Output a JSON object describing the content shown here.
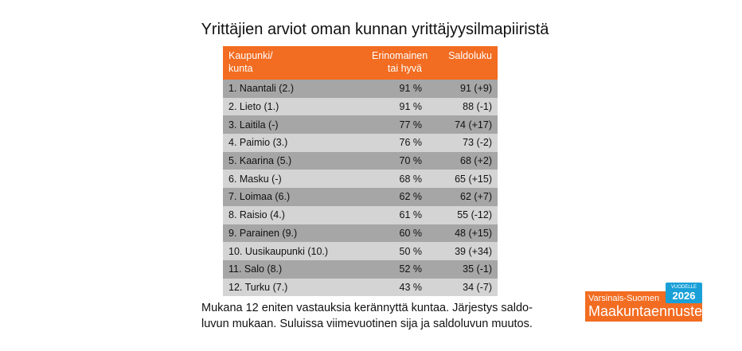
{
  "title": "Yrittäjien arviot oman kunnan yrittäjyysilmapiiristä",
  "table": {
    "headers": [
      "Kaupunki/\nkunta",
      "Erinomainen\ntai hyvä",
      "Saldoluku"
    ],
    "header_color": "#f26c21",
    "rows": [
      [
        "1. Naantali (2.)",
        "91 %",
        "91 (+9)"
      ],
      [
        "2. Lieto (1.)",
        "91 %",
        "88 (-1)"
      ],
      [
        "3. Laitila (-)",
        "77 %",
        "74 (+17)"
      ],
      [
        "4. Paimio (3.)",
        "76 %",
        "73 (-2)"
      ],
      [
        "5. Kaarina (5.)",
        "70 %",
        "68 (+2)"
      ],
      [
        "6. Masku (-)",
        "68 %",
        "65 (+15)"
      ],
      [
        "7. Loimaa (6.)",
        "62 %",
        "62 (+7)"
      ],
      [
        "8. Raisio (4.)",
        "61 %",
        "55 (-12)"
      ],
      [
        "9. Parainen (9.)",
        "60 %",
        "48 (+15)"
      ],
      [
        "10. Uusikaupunki (10.)",
        "50 %",
        "39 (+34)"
      ],
      [
        "11. Salo (8.)",
        "52 %",
        "35 (-1)"
      ],
      [
        "12. Turku (7.)",
        "43 %",
        "34 (-7)"
      ]
    ]
  },
  "caption": "Mukana 12 eniten vastauksia kerännyttä kuntaa. Järjestys saldo-\nluvun mukaan. Suluissa viimevuotinen sija ja saldoluvun muutos.",
  "logo": {
    "sub": "Varsinais-Suomen",
    "name": "Maakuntaennuste",
    "year_label": "VUODELLE",
    "year": "2026"
  }
}
